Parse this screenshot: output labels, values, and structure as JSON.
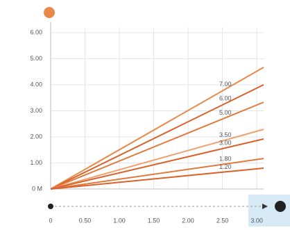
{
  "chart_data": {
    "type": "line",
    "x": [
      0,
      3.1
    ],
    "series": [
      {
        "name": "7.00",
        "color": "#e8894a",
        "values": [
          0,
          4.67
        ]
      },
      {
        "name": "6.00",
        "color": "#d9622b",
        "values": [
          0,
          4.0
        ]
      },
      {
        "name": "5.00",
        "color": "#e07a3c",
        "values": [
          0,
          3.33
        ]
      },
      {
        "name": "3.50",
        "color": "#f0a070",
        "values": [
          0,
          2.29
        ]
      },
      {
        "name": "3.00",
        "color": "#d9622b",
        "values": [
          0,
          1.92
        ]
      },
      {
        "name": "1.80",
        "color": "#e07a3c",
        "values": [
          0,
          1.17
        ]
      },
      {
        "name": "1.20",
        "color": "#d9622b",
        "values": [
          0,
          0.8
        ]
      }
    ],
    "xlim": [
      0,
      3.1
    ],
    "xticks": [
      {
        "value": 0,
        "label": "0"
      },
      {
        "value": 0.5,
        "label": "0.50"
      },
      {
        "value": 1,
        "label": "1.00"
      },
      {
        "value": 1.5,
        "label": "1.50"
      },
      {
        "value": 2,
        "label": "2.00"
      },
      {
        "value": 2.5,
        "label": "2.50"
      },
      {
        "value": 3,
        "label": "3.00"
      }
    ],
    "ylim": [
      0,
      6.2
    ],
    "yticks": [
      {
        "value": 0,
        "label": "0 M"
      },
      {
        "value": 1,
        "label": "1.00"
      },
      {
        "value": 2,
        "label": "2.00"
      },
      {
        "value": 3,
        "label": "3.00"
      },
      {
        "value": 4,
        "label": "4.00"
      },
      {
        "value": 5,
        "label": "5.00"
      },
      {
        "value": 6,
        "label": "6.00"
      }
    ],
    "grid": true
  }
}
